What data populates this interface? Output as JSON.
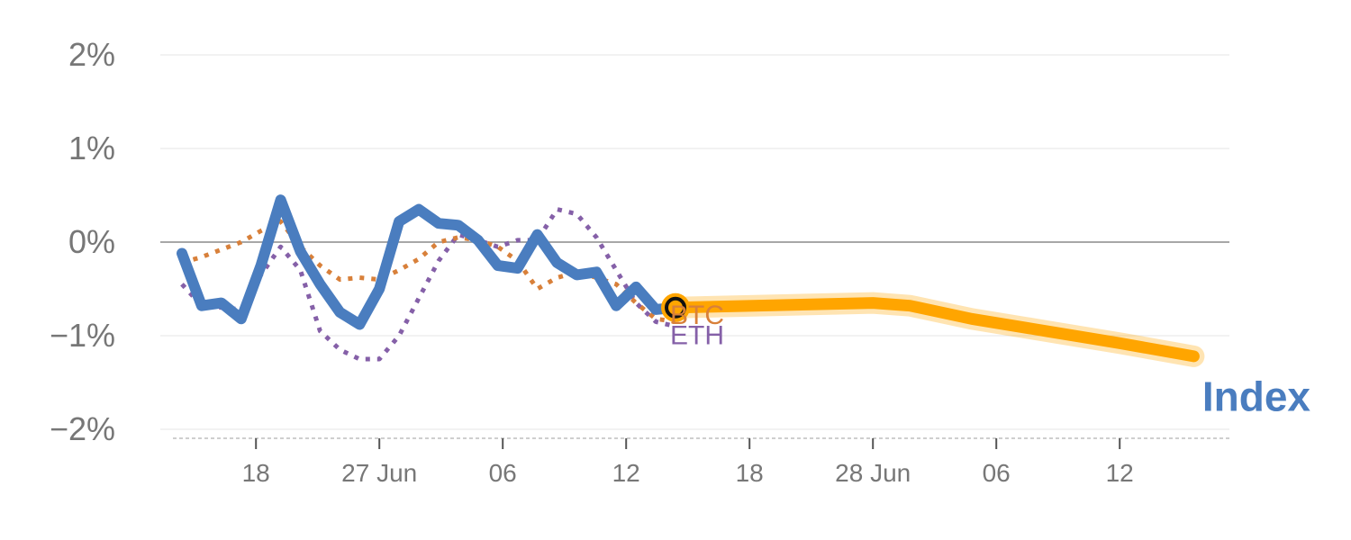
{
  "chart_data": {
    "type": "line",
    "y_unit": "%",
    "ylim": [
      -2,
      2
    ],
    "yticks": [
      {
        "value": 2,
        "label": "2%"
      },
      {
        "value": 1,
        "label": "1%"
      },
      {
        "value": 0,
        "label": "0%"
      },
      {
        "value": -1,
        "label": "−1%"
      },
      {
        "value": -2,
        "label": "−2%"
      }
    ],
    "xlim": [
      0,
      42
    ],
    "xticks": [
      {
        "x": 3,
        "label": "18"
      },
      {
        "x": 8,
        "label": "27 Jun"
      },
      {
        "x": 13,
        "label": "06"
      },
      {
        "x": 18,
        "label": "12"
      },
      {
        "x": 23,
        "label": "18"
      },
      {
        "x": 28,
        "label": "28 Jun"
      },
      {
        "x": 33,
        "label": "06"
      },
      {
        "x": 38,
        "label": "12"
      }
    ],
    "grid": true,
    "zero_line": true,
    "series": [
      {
        "name": "ETH",
        "style": "dotted",
        "color": "#8560a8",
        "x": [
          0,
          0.8,
          1.6,
          2.4,
          3.2,
          4,
          4.8,
          5.6,
          6.4,
          7.2,
          8,
          8.8,
          9.6,
          10.4,
          11.2,
          12,
          12.8,
          13.6,
          14.4,
          15.2,
          16,
          16.8,
          17.6,
          18.4,
          19.2,
          20
        ],
        "y": [
          -0.45,
          -0.68,
          -0.7,
          -0.72,
          -0.35,
          -0.05,
          -0.3,
          -0.95,
          -1.15,
          -1.25,
          -1.25,
          -1.0,
          -0.6,
          -0.2,
          0.08,
          0.02,
          -0.05,
          0.02,
          0.02,
          0.35,
          0.3,
          0.05,
          -0.3,
          -0.65,
          -0.85,
          -0.9
        ]
      },
      {
        "name": "BTC",
        "style": "dotted",
        "color": "#d8803a",
        "x": [
          0,
          0.8,
          1.6,
          2.4,
          3.2,
          4,
          4.8,
          5.6,
          6.4,
          7.2,
          8,
          8.8,
          9.6,
          10.4,
          11.2,
          12,
          12.8,
          13.6,
          14.4,
          15.2,
          16,
          16.8,
          17.6,
          18.4,
          19.2,
          20
        ],
        "y": [
          -0.22,
          -0.16,
          -0.08,
          0.0,
          0.12,
          0.22,
          -0.05,
          -0.25,
          -0.4,
          -0.38,
          -0.4,
          -0.3,
          -0.18,
          0.0,
          0.05,
          0.02,
          -0.05,
          -0.2,
          -0.5,
          -0.38,
          -0.32,
          -0.38,
          -0.45,
          -0.65,
          -0.82,
          -0.85
        ]
      },
      {
        "name": "Index",
        "style": "solid",
        "color": "#4a7dbf",
        "x": [
          0,
          0.8,
          1.6,
          2.4,
          3.2,
          4,
          4.8,
          5.6,
          6.4,
          7.2,
          8,
          8.8,
          9.6,
          10.4,
          11.2,
          12,
          12.8,
          13.6,
          14.4,
          15.2,
          16,
          16.8,
          17.6,
          18.4,
          19.2,
          20
        ],
        "y": [
          -0.12,
          -0.68,
          -0.65,
          -0.82,
          -0.25,
          0.45,
          -0.1,
          -0.45,
          -0.75,
          -0.88,
          -0.5,
          0.22,
          0.35,
          0.2,
          0.18,
          0.02,
          -0.25,
          -0.28,
          0.08,
          -0.22,
          -0.35,
          -0.32,
          -0.68,
          -0.48,
          -0.72,
          -0.7
        ]
      }
    ],
    "forecast": {
      "color": "#ffa500",
      "x": [
        20,
        28,
        29.5,
        32,
        35,
        38,
        41
      ],
      "y": [
        -0.7,
        -0.65,
        -0.68,
        -0.82,
        -0.95,
        -1.08,
        -1.22
      ]
    },
    "marker": {
      "x": 20,
      "y": -0.7
    },
    "labels": [
      {
        "series": "BTC",
        "text": "BTC",
        "x": 20,
        "y": -0.7,
        "color": "#d8803a"
      },
      {
        "series": "ETH",
        "text": "ETH",
        "x": 20,
        "y": -0.92,
        "color": "#8560a8"
      },
      {
        "series": "Index",
        "text": "Index",
        "x": 41,
        "y": -1.65,
        "color": "#4a7dbf"
      }
    ]
  }
}
